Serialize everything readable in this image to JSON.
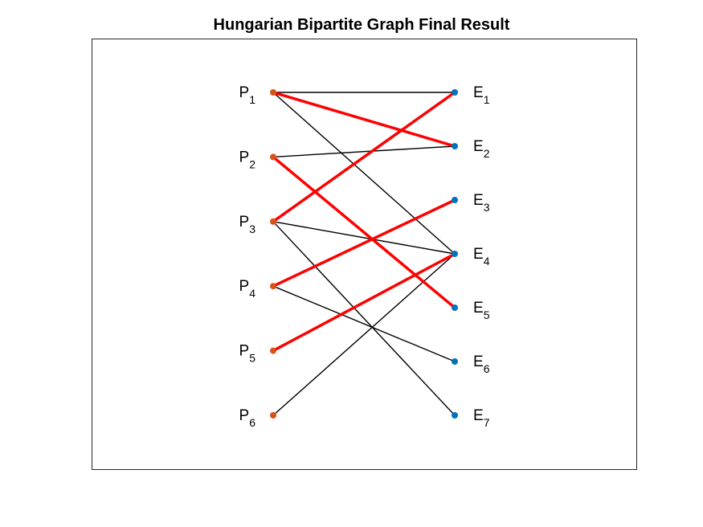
{
  "title": "Hungarian Bipartite Graph Final Result",
  "colors": {
    "left_node": "#D95319",
    "right_node": "#0072BD",
    "edge": "#000000",
    "matched_edge": "#FF0000",
    "axes_border": "#262626"
  },
  "left_nodes": [
    {
      "id": "P1",
      "letter": "P",
      "sub": "1"
    },
    {
      "id": "P2",
      "letter": "P",
      "sub": "2"
    },
    {
      "id": "P3",
      "letter": "P",
      "sub": "3"
    },
    {
      "id": "P4",
      "letter": "P",
      "sub": "4"
    },
    {
      "id": "P5",
      "letter": "P",
      "sub": "5"
    },
    {
      "id": "P6",
      "letter": "P",
      "sub": "6"
    }
  ],
  "right_nodes": [
    {
      "id": "E1",
      "letter": "E",
      "sub": "1"
    },
    {
      "id": "E2",
      "letter": "E",
      "sub": "2"
    },
    {
      "id": "E3",
      "letter": "E",
      "sub": "3"
    },
    {
      "id": "E4",
      "letter": "E",
      "sub": "4"
    },
    {
      "id": "E5",
      "letter": "E",
      "sub": "5"
    },
    {
      "id": "E6",
      "letter": "E",
      "sub": "6"
    },
    {
      "id": "E7",
      "letter": "E",
      "sub": "7"
    }
  ],
  "edges": [
    {
      "from": "P1",
      "to": "E1",
      "matched": false
    },
    {
      "from": "P1",
      "to": "E2",
      "matched": true
    },
    {
      "from": "P1",
      "to": "E4",
      "matched": false
    },
    {
      "from": "P2",
      "to": "E2",
      "matched": false
    },
    {
      "from": "P2",
      "to": "E5",
      "matched": true
    },
    {
      "from": "P3",
      "to": "E1",
      "matched": true
    },
    {
      "from": "P3",
      "to": "E4",
      "matched": false
    },
    {
      "from": "P3",
      "to": "E7",
      "matched": false
    },
    {
      "from": "P4",
      "to": "E3",
      "matched": true
    },
    {
      "from": "P4",
      "to": "E6",
      "matched": false
    },
    {
      "from": "P5",
      "to": "E4",
      "matched": true
    },
    {
      "from": "P6",
      "to": "E4",
      "matched": false
    }
  ]
}
